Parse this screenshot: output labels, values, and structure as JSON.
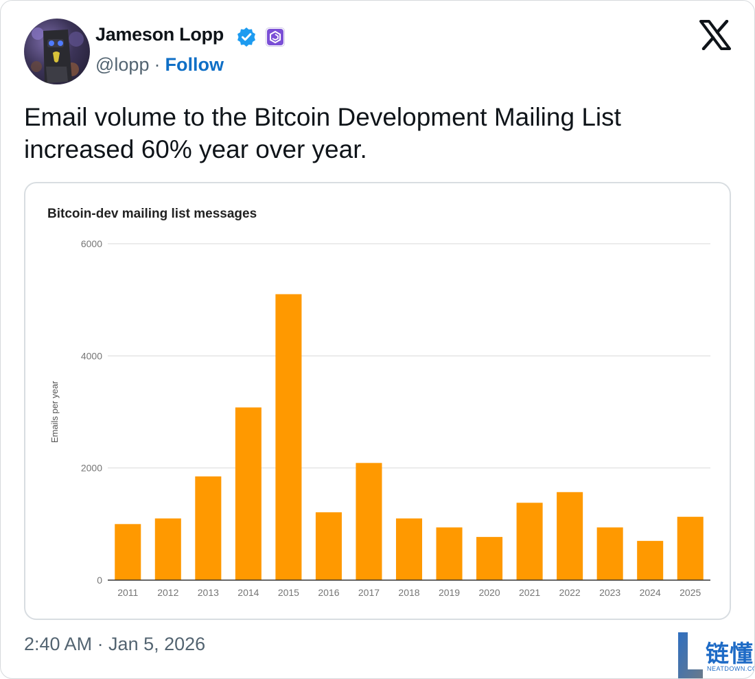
{
  "tweet": {
    "display_name": "Jameson Lopp",
    "handle": "@lopp",
    "separator": "·",
    "follow_label": "Follow",
    "text_line1": "Email volume to the Bitcoin Development Mailing List",
    "text_line2": "increased 60% year over year.",
    "timestamp": "2:40 AM · Jan 5, 2026"
  },
  "icons": {
    "verified": "verified-badge-icon",
    "affiliation": "affiliation-badge-icon",
    "platform": "x-logo-icon"
  },
  "colors": {
    "bar": "#ff9900",
    "follow": "#0f6fc6",
    "verified": "#1d9bf0",
    "affiliation": "#7b4fd6",
    "watermark": "#1e6bc6"
  },
  "watermark": {
    "text": "链懂",
    "subtext": "NEATDOWN.COM"
  },
  "chart_data": {
    "type": "bar",
    "title": "Bitcoin-dev mailing list messages",
    "ylabel": "Emails per year",
    "xlabel": "",
    "categories": [
      "2011",
      "2012",
      "2013",
      "2014",
      "2015",
      "2016",
      "2017",
      "2018",
      "2019",
      "2020",
      "2021",
      "2022",
      "2023",
      "2024",
      "2025"
    ],
    "values": [
      1000,
      1100,
      1850,
      3080,
      5100,
      1210,
      2090,
      1100,
      940,
      770,
      1380,
      1570,
      940,
      700,
      1130
    ],
    "ylim": [
      0,
      6000
    ],
    "yticks": [
      0,
      2000,
      4000,
      6000
    ],
    "grid": true,
    "legend": "none"
  }
}
